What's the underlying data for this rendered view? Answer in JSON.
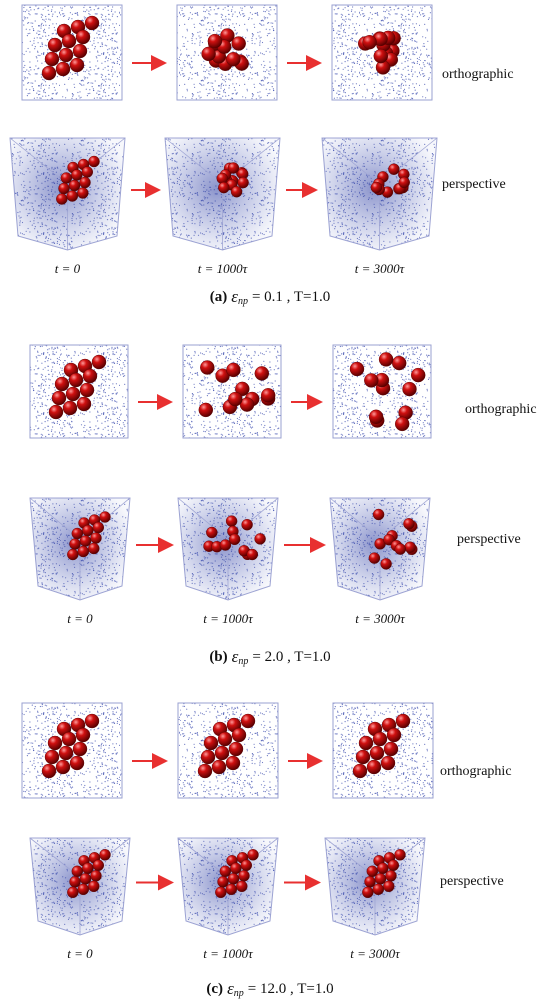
{
  "panels": [
    {
      "view_labels": [
        "orthographic",
        "perspective"
      ],
      "time_labels": [
        "t = 0",
        "t = 1000τ",
        "t = 3000τ"
      ],
      "caption": {
        "label": "(a)",
        "symbol": "ε",
        "subscript": "np",
        "rest": "= 0.1 , T=1.0"
      }
    },
    {
      "view_labels": [
        "orthographic",
        "perspective"
      ],
      "time_labels": [
        "t = 0",
        "t = 1000τ",
        "t = 3000τ"
      ],
      "caption": {
        "label": "(b)",
        "symbol": "ε",
        "subscript": "np",
        "rest": "= 2.0 , T=1.0"
      }
    },
    {
      "view_labels": [
        "orthographic",
        "perspective"
      ],
      "time_labels": [
        "t = 0",
        "t = 1000τ",
        "t = 3000τ"
      ],
      "caption": {
        "label": "(c)",
        "symbol": "ε",
        "subscript": "np",
        "rest": "= 12.0 , T=1.0"
      }
    }
  ]
}
